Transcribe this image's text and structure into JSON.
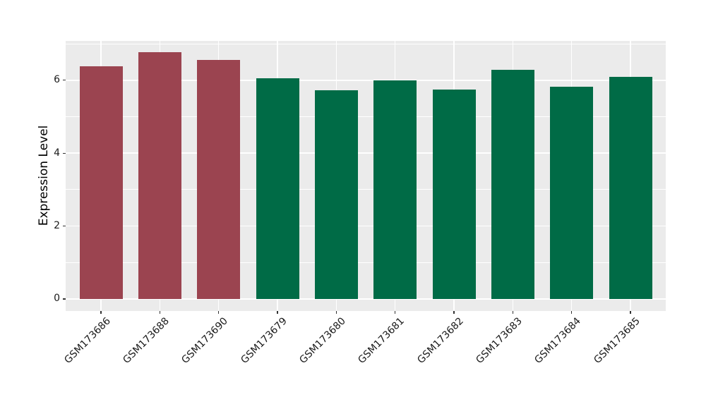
{
  "chart_data": {
    "type": "bar",
    "title": "",
    "xlabel": "",
    "ylabel": "Expression Level",
    "categories": [
      "GSM173686",
      "GSM173688",
      "GSM173690",
      "GSM173679",
      "GSM173680",
      "GSM173681",
      "GSM173682",
      "GSM173683",
      "GSM173684",
      "GSM173685"
    ],
    "values": [
      6.38,
      6.77,
      6.56,
      6.05,
      5.73,
      6.0,
      5.74,
      6.29,
      5.82,
      6.09
    ],
    "bar_colors": [
      "#9B4450",
      "#9B4450",
      "#9B4450",
      "#006B46",
      "#006B46",
      "#006B46",
      "#006B46",
      "#006B46",
      "#006B46",
      "#006B46"
    ],
    "yticks": [
      0,
      2,
      4,
      6
    ],
    "ytick_labels": [
      "0",
      "2",
      "4",
      "6"
    ],
    "yticks_minor": [
      1,
      3,
      5,
      7
    ],
    "ylim": [
      -0.33,
      7.08
    ],
    "grid": true,
    "legend": false,
    "x_label_rotation_deg": 45,
    "panel_bg": "#EBEBEB",
    "grid_color": "#FFFFFF",
    "tick_mark_color": "#333333",
    "tick_label_color": "#1A1A1A",
    "figure_bg": "#FFFFFF"
  }
}
